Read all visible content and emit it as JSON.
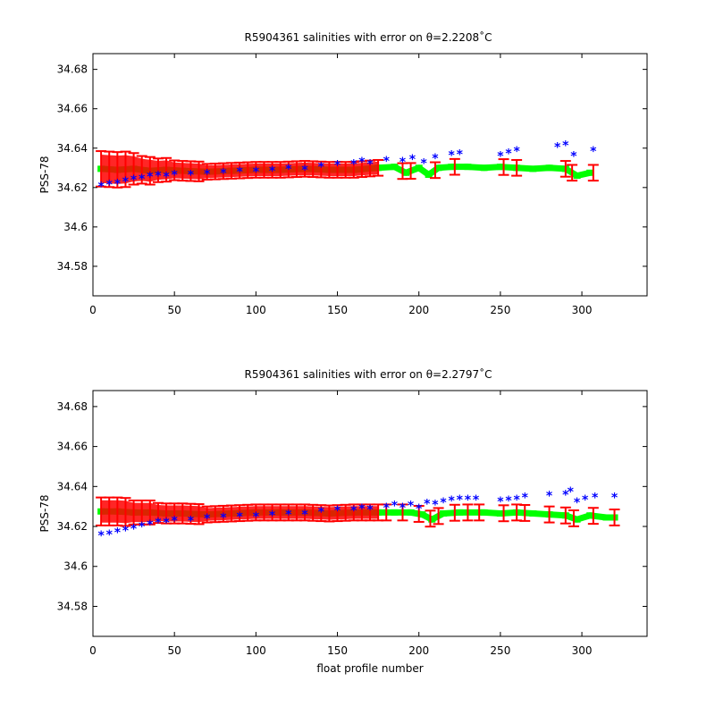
{
  "colors": {
    "mapped": "#00ff00",
    "float": "#0000ff",
    "error": "#ff0000",
    "axes": "#000000",
    "background": "#ffffff"
  },
  "chart_data": [
    {
      "type": "scatter",
      "title": "R5904361 salinities with error on θ=2.2208˚C",
      "xlabel": "",
      "ylabel": "PSS-78",
      "xlim": [
        0,
        340
      ],
      "ylim": [
        34.565,
        34.688
      ],
      "xticks": [
        "0",
        "50",
        "100",
        "150",
        "200",
        "250",
        "300"
      ],
      "xtick_values": [
        0,
        50,
        100,
        150,
        200,
        250,
        300
      ],
      "yticks": [
        "34.58",
        "34.6",
        "34.62",
        "34.64",
        "34.66",
        "34.68"
      ],
      "ytick_values": [
        34.58,
        34.6,
        34.62,
        34.64,
        34.66,
        34.68
      ],
      "grid": false,
      "series": [
        {
          "role": "mapped salinity with error",
          "color": "#00ff00",
          "points": [
            [
              5,
              34.6295
            ],
            [
              15,
              34.629
            ],
            [
              25,
              34.6295
            ],
            [
              35,
              34.6285
            ],
            [
              45,
              34.629
            ],
            [
              55,
              34.6285
            ],
            [
              70,
              34.628
            ],
            [
              85,
              34.6285
            ],
            [
              100,
              34.629
            ],
            [
              115,
              34.629
            ],
            [
              130,
              34.6295
            ],
            [
              145,
              34.629
            ],
            [
              160,
              34.629
            ],
            [
              175,
              34.63
            ],
            [
              185,
              34.6305
            ],
            [
              192,
              34.6275
            ],
            [
              200,
              34.63
            ],
            [
              206,
              34.6265
            ],
            [
              212,
              34.63
            ],
            [
              220,
              34.6305
            ],
            [
              230,
              34.6305
            ],
            [
              240,
              34.63
            ],
            [
              250,
              34.6305
            ],
            [
              260,
              34.63
            ],
            [
              270,
              34.6295
            ],
            [
              280,
              34.63
            ],
            [
              290,
              34.6295
            ],
            [
              297,
              34.626
            ],
            [
              305,
              34.6275
            ]
          ],
          "errors": [
            [
              5,
              0.009
            ],
            [
              10,
              0.009
            ],
            [
              15,
              0.009
            ],
            [
              20,
              0.009
            ],
            [
              25,
              0.008
            ],
            [
              30,
              0.007
            ],
            [
              35,
              0.007
            ],
            [
              40,
              0.006
            ],
            [
              45,
              0.006
            ],
            [
              50,
              0.005
            ],
            [
              55,
              0.005
            ],
            [
              60,
              0.005
            ],
            [
              65,
              0.005
            ],
            [
              70,
              0.004
            ],
            [
              75,
              0.004
            ],
            [
              80,
              0.004
            ],
            [
              85,
              0.004
            ],
            [
              90,
              0.004
            ],
            [
              95,
              0.004
            ],
            [
              100,
              0.004
            ],
            [
              105,
              0.004
            ],
            [
              110,
              0.004
            ],
            [
              115,
              0.004
            ],
            [
              120,
              0.004
            ],
            [
              125,
              0.004
            ],
            [
              130,
              0.004
            ],
            [
              135,
              0.004
            ],
            [
              140,
              0.004
            ],
            [
              145,
              0.004
            ],
            [
              150,
              0.004
            ],
            [
              155,
              0.004
            ],
            [
              160,
              0.004
            ],
            [
              165,
              0.004
            ],
            [
              170,
              0.004
            ],
            [
              175,
              0.004
            ],
            [
              190,
              0.004
            ],
            [
              195,
              0.004
            ],
            [
              210,
              0.004
            ],
            [
              222,
              0.004
            ],
            [
              252,
              0.004
            ],
            [
              260,
              0.004
            ],
            [
              290,
              0.004
            ],
            [
              294,
              0.004
            ],
            [
              307,
              0.004
            ]
          ]
        },
        {
          "role": "float salinity",
          "color": "#0000ff",
          "points": [
            [
              5,
              34.6205
            ],
            [
              10,
              34.6215
            ],
            [
              15,
              34.622
            ],
            [
              20,
              34.623
            ],
            [
              25,
              34.624
            ],
            [
              30,
              34.6245
            ],
            [
              35,
              34.6255
            ],
            [
              40,
              34.626
            ],
            [
              45,
              34.6255
            ],
            [
              50,
              34.6265
            ],
            [
              60,
              34.6265
            ],
            [
              70,
              34.627
            ],
            [
              80,
              34.6275
            ],
            [
              90,
              34.628
            ],
            [
              100,
              34.628
            ],
            [
              110,
              34.6285
            ],
            [
              120,
              34.6295
            ],
            [
              130,
              34.629
            ],
            [
              140,
              34.6305
            ],
            [
              150,
              34.6315
            ],
            [
              160,
              34.632
            ],
            [
              165,
              34.633
            ],
            [
              170,
              34.632
            ],
            [
              180,
              34.6335
            ],
            [
              190,
              34.633
            ],
            [
              196,
              34.6345
            ],
            [
              203,
              34.6325
            ],
            [
              210,
              34.635
            ],
            [
              220,
              34.6365
            ],
            [
              225,
              34.637
            ],
            [
              250,
              34.636
            ],
            [
              255,
              34.6375
            ],
            [
              260,
              34.6385
            ],
            [
              285,
              34.6405
            ],
            [
              290,
              34.6415
            ],
            [
              295,
              34.636
            ],
            [
              307,
              34.6385
            ]
          ]
        }
      ]
    },
    {
      "type": "scatter",
      "title": "R5904361 salinities with error on θ=2.2797˚C",
      "xlabel": "float profile number",
      "ylabel": "PSS-78",
      "xlim": [
        0,
        340
      ],
      "ylim": [
        34.565,
        34.688
      ],
      "xticks": [
        "0",
        "50",
        "100",
        "150",
        "200",
        "250",
        "300"
      ],
      "xtick_values": [
        0,
        50,
        100,
        150,
        200,
        250,
        300
      ],
      "yticks": [
        "34.58",
        "34.6",
        "34.62",
        "34.64",
        "34.66",
        "34.68"
      ],
      "ytick_values": [
        34.58,
        34.6,
        34.62,
        34.64,
        34.66,
        34.68
      ],
      "grid": false,
      "series": [
        {
          "role": "mapped salinity with error",
          "color": "#00ff00",
          "points": [
            [
              5,
              34.6275
            ],
            [
              15,
              34.6275
            ],
            [
              25,
              34.627
            ],
            [
              35,
              34.627
            ],
            [
              45,
              34.6265
            ],
            [
              55,
              34.6265
            ],
            [
              70,
              34.626
            ],
            [
              85,
              34.6265
            ],
            [
              100,
              34.627
            ],
            [
              115,
              34.627
            ],
            [
              130,
              34.627
            ],
            [
              145,
              34.6265
            ],
            [
              160,
              34.627
            ],
            [
              175,
              34.627
            ],
            [
              185,
              34.627
            ],
            [
              195,
              34.627
            ],
            [
              202,
              34.626
            ],
            [
              208,
              34.6235
            ],
            [
              215,
              34.6265
            ],
            [
              225,
              34.627
            ],
            [
              240,
              34.627
            ],
            [
              250,
              34.6265
            ],
            [
              260,
              34.627
            ],
            [
              270,
              34.6265
            ],
            [
              280,
              34.626
            ],
            [
              290,
              34.6255
            ],
            [
              297,
              34.6235
            ],
            [
              305,
              34.6255
            ],
            [
              315,
              34.6245
            ],
            [
              320,
              34.6245
            ]
          ],
          "errors": [
            [
              5,
              0.007
            ],
            [
              10,
              0.007
            ],
            [
              15,
              0.007
            ],
            [
              20,
              0.007
            ],
            [
              25,
              0.006
            ],
            [
              30,
              0.006
            ],
            [
              35,
              0.006
            ],
            [
              40,
              0.005
            ],
            [
              45,
              0.005
            ],
            [
              50,
              0.005
            ],
            [
              55,
              0.005
            ],
            [
              60,
              0.005
            ],
            [
              65,
              0.005
            ],
            [
              70,
              0.004
            ],
            [
              75,
              0.004
            ],
            [
              80,
              0.004
            ],
            [
              85,
              0.004
            ],
            [
              90,
              0.004
            ],
            [
              95,
              0.004
            ],
            [
              100,
              0.004
            ],
            [
              105,
              0.004
            ],
            [
              110,
              0.004
            ],
            [
              115,
              0.004
            ],
            [
              120,
              0.004
            ],
            [
              125,
              0.004
            ],
            [
              130,
              0.004
            ],
            [
              135,
              0.004
            ],
            [
              140,
              0.004
            ],
            [
              145,
              0.004
            ],
            [
              150,
              0.004
            ],
            [
              155,
              0.004
            ],
            [
              160,
              0.004
            ],
            [
              165,
              0.004
            ],
            [
              170,
              0.004
            ],
            [
              175,
              0.004
            ],
            [
              180,
              0.004
            ],
            [
              190,
              0.004
            ],
            [
              200,
              0.004
            ],
            [
              207,
              0.004
            ],
            [
              212,
              0.004
            ],
            [
              222,
              0.004
            ],
            [
              230,
              0.004
            ],
            [
              237,
              0.004
            ],
            [
              252,
              0.004
            ],
            [
              260,
              0.004
            ],
            [
              265,
              0.004
            ],
            [
              280,
              0.004
            ],
            [
              290,
              0.004
            ],
            [
              295,
              0.004
            ],
            [
              307,
              0.004
            ],
            [
              320,
              0.004
            ]
          ]
        },
        {
          "role": "float salinity",
          "color": "#0000ff",
          "points": [
            [
              5,
              34.6155
            ],
            [
              10,
              34.616
            ],
            [
              15,
              34.617
            ],
            [
              20,
              34.618
            ],
            [
              25,
              34.619
            ],
            [
              30,
              34.62
            ],
            [
              35,
              34.621
            ],
            [
              40,
              34.622
            ],
            [
              45,
              34.622
            ],
            [
              50,
              34.623
            ],
            [
              60,
              34.623
            ],
            [
              70,
              34.624
            ],
            [
              80,
              34.6245
            ],
            [
              90,
              34.625
            ],
            [
              100,
              34.625
            ],
            [
              110,
              34.6255
            ],
            [
              120,
              34.626
            ],
            [
              130,
              34.626
            ],
            [
              140,
              34.6275
            ],
            [
              150,
              34.628
            ],
            [
              160,
              34.628
            ],
            [
              165,
              34.629
            ],
            [
              170,
              34.6285
            ],
            [
              180,
              34.6295
            ],
            [
              185,
              34.6305
            ],
            [
              190,
              34.6295
            ],
            [
              195,
              34.6305
            ],
            [
              200,
              34.629
            ],
            [
              205,
              34.6315
            ],
            [
              210,
              34.631
            ],
            [
              215,
              34.632
            ],
            [
              220,
              34.633
            ],
            [
              225,
              34.6335
            ],
            [
              230,
              34.6335
            ],
            [
              235,
              34.6335
            ],
            [
              250,
              34.6325
            ],
            [
              255,
              34.633
            ],
            [
              260,
              34.6335
            ],
            [
              265,
              34.6345
            ],
            [
              280,
              34.6355
            ],
            [
              290,
              34.636
            ],
            [
              293,
              34.6375
            ],
            [
              297,
              34.632
            ],
            [
              302,
              34.6335
            ],
            [
              308,
              34.6345
            ],
            [
              320,
              34.6345
            ]
          ]
        }
      ]
    }
  ]
}
